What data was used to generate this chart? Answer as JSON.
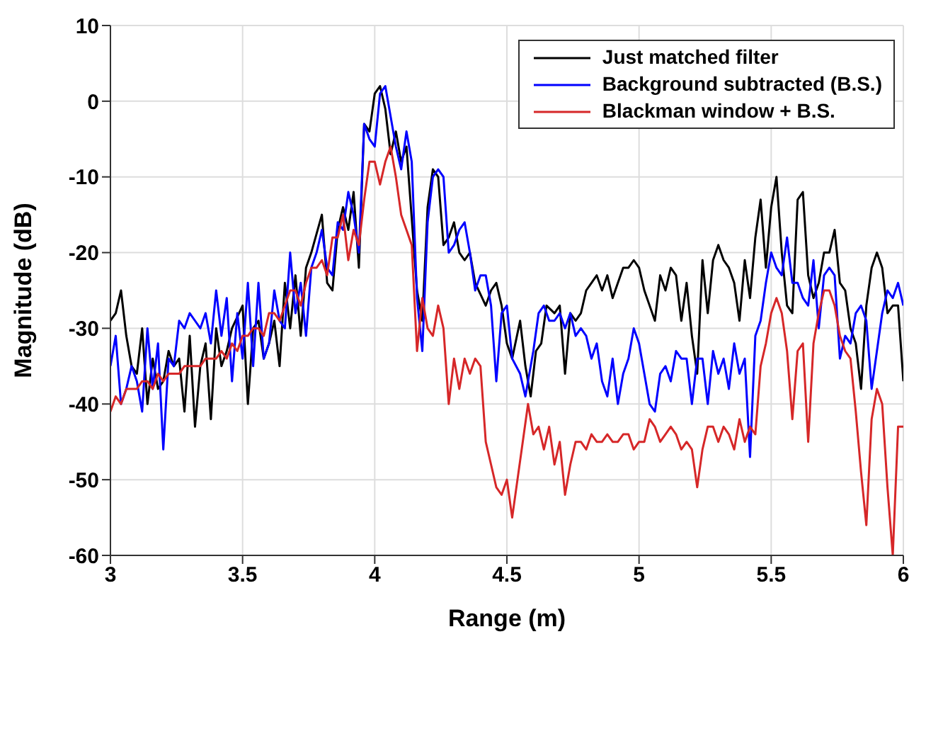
{
  "chart_data": {
    "type": "line",
    "xlabel": "Range (m)",
    "ylabel": "Magnitude (dB)",
    "xlim": [
      3,
      6
    ],
    "xticks": [
      3,
      3.5,
      4,
      4.5,
      5,
      5.5,
      6
    ],
    "ylim": [
      -60,
      10
    ],
    "yticks": [
      -60,
      -50,
      -40,
      -30,
      -20,
      -10,
      0,
      10
    ],
    "grid": true,
    "legend": "top right",
    "marker": "none",
    "line_style": "solid",
    "series": [
      {
        "name": "Just matched filter",
        "color": "#000000",
        "x": [
          3.0,
          3.02,
          3.04,
          3.06,
          3.08,
          3.1,
          3.12,
          3.14,
          3.16,
          3.18,
          3.2,
          3.22,
          3.24,
          3.26,
          3.28,
          3.3,
          3.32,
          3.34,
          3.36,
          3.38,
          3.4,
          3.42,
          3.44,
          3.46,
          3.5,
          3.52,
          3.54,
          3.56,
          3.58,
          3.6,
          3.62,
          3.64,
          3.66,
          3.68,
          3.7,
          3.72,
          3.74,
          3.76,
          3.8,
          3.82,
          3.84,
          3.86,
          3.88,
          3.9,
          3.92,
          3.94,
          3.96,
          3.98,
          4.0,
          4.02,
          4.04,
          4.06,
          4.08,
          4.1,
          4.12,
          4.16,
          4.18,
          4.2,
          4.22,
          4.24,
          4.26,
          4.28,
          4.3,
          4.32,
          4.34,
          4.36,
          4.38,
          4.42,
          4.44,
          4.46,
          4.48,
          4.5,
          4.52,
          4.55,
          4.57,
          4.59,
          4.61,
          4.63,
          4.65,
          4.68,
          4.7,
          4.72,
          4.74,
          4.76,
          4.78,
          4.8,
          4.82,
          4.84,
          4.86,
          4.88,
          4.9,
          4.92,
          4.94,
          4.96,
          4.98,
          5.0,
          5.02,
          5.04,
          5.06,
          5.08,
          5.1,
          5.12,
          5.14,
          5.16,
          5.18,
          5.2,
          5.22,
          5.24,
          5.26,
          5.28,
          5.3,
          5.32,
          5.34,
          5.36,
          5.38,
          5.4,
          5.42,
          5.44,
          5.46,
          5.48,
          5.5,
          5.52,
          5.54,
          5.56,
          5.58,
          5.6,
          5.62,
          5.64,
          5.66,
          5.68,
          5.7,
          5.72,
          5.74,
          5.76,
          5.78,
          5.8,
          5.82,
          5.84,
          5.86,
          5.88,
          5.9,
          5.92,
          5.94,
          5.96,
          5.98,
          6.0
        ],
        "values": [
          -29,
          -28,
          -25,
          -31,
          -35,
          -36,
          -30,
          -40,
          -34,
          -38,
          -37,
          -33,
          -35,
          -34,
          -41,
          -31,
          -43,
          -35,
          -32,
          -42,
          -30,
          -35,
          -33,
          -30,
          -27,
          -40,
          -30,
          -29,
          -34,
          -32,
          -29,
          -35,
          -24,
          -30,
          -23,
          -31,
          -22,
          -20,
          -15,
          -24,
          -25,
          -17,
          -14,
          -17,
          -12,
          -22,
          -3,
          -4,
          1,
          2,
          -1,
          -7,
          -4,
          -8,
          -6,
          -25,
          -29,
          -14,
          -9,
          -10,
          -19,
          -18,
          -16,
          -20,
          -21,
          -20,
          -24,
          -27,
          -25,
          -24,
          -27,
          -32,
          -34,
          -29,
          -35,
          -39,
          -33,
          -32,
          -27,
          -28,
          -27,
          -36,
          -28,
          -29,
          -28,
          -25,
          -24,
          -23,
          -25,
          -23,
          -26,
          -24,
          -22,
          -22,
          -21,
          -22,
          -25,
          -27,
          -29,
          -23,
          -25,
          -22,
          -23,
          -29,
          -24,
          -31,
          -36,
          -21,
          -28,
          -21,
          -19,
          -21,
          -22,
          -24,
          -29,
          -21,
          -26,
          -18,
          -13,
          -22,
          -14,
          -10,
          -20,
          -27,
          -28,
          -13,
          -12,
          -23,
          -26,
          -24,
          -20,
          -20,
          -17,
          -24,
          -25,
          -30,
          -32,
          -38,
          -27,
          -22,
          -20,
          -22,
          -28,
          -27,
          -27,
          -37
        ]
      },
      {
        "name": "Background subtracted (B.S.)",
        "color": "#0000ff",
        "x": [
          3.0,
          3.02,
          3.04,
          3.06,
          3.08,
          3.1,
          3.12,
          3.14,
          3.16,
          3.18,
          3.2,
          3.22,
          3.24,
          3.26,
          3.28,
          3.3,
          3.32,
          3.34,
          3.36,
          3.38,
          3.4,
          3.42,
          3.44,
          3.46,
          3.48,
          3.5,
          3.52,
          3.54,
          3.56,
          3.58,
          3.6,
          3.62,
          3.64,
          3.66,
          3.68,
          3.7,
          3.72,
          3.74,
          3.76,
          3.78,
          3.8,
          3.82,
          3.84,
          3.86,
          3.88,
          3.9,
          3.92,
          3.94,
          3.96,
          3.98,
          4.0,
          4.02,
          4.04,
          4.06,
          4.08,
          4.1,
          4.12,
          4.14,
          4.16,
          4.18,
          4.2,
          4.22,
          4.24,
          4.26,
          4.28,
          4.3,
          4.32,
          4.34,
          4.36,
          4.38,
          4.4,
          4.42,
          4.44,
          4.46,
          4.48,
          4.5,
          4.52,
          4.55,
          4.57,
          4.6,
          4.62,
          4.64,
          4.66,
          4.68,
          4.7,
          4.72,
          4.74,
          4.76,
          4.78,
          4.8,
          4.82,
          4.84,
          4.86,
          4.88,
          4.9,
          4.92,
          4.94,
          4.96,
          4.98,
          5.0,
          5.02,
          5.04,
          5.06,
          5.08,
          5.1,
          5.12,
          5.14,
          5.16,
          5.18,
          5.2,
          5.22,
          5.24,
          5.26,
          5.28,
          5.3,
          5.32,
          5.34,
          5.36,
          5.38,
          5.4,
          5.42,
          5.44,
          5.46,
          5.48,
          5.5,
          5.52,
          5.54,
          5.56,
          5.58,
          5.6,
          5.62,
          5.64,
          5.66,
          5.68,
          5.7,
          5.72,
          5.74,
          5.76,
          5.78,
          5.8,
          5.82,
          5.84,
          5.86,
          5.88,
          5.9,
          5.92,
          5.94,
          5.96,
          5.98,
          6.0
        ],
        "values": [
          -35,
          -31,
          -40,
          -38,
          -35,
          -37,
          -41,
          -30,
          -38,
          -32,
          -46,
          -34,
          -35,
          -29,
          -30,
          -28,
          -29,
          -30,
          -28,
          -32,
          -25,
          -31,
          -26,
          -37,
          -28,
          -34,
          -24,
          -35,
          -24,
          -34,
          -32,
          -25,
          -29,
          -30,
          -20,
          -28,
          -24,
          -31,
          -22,
          -20,
          -17,
          -22,
          -23,
          -16,
          -17,
          -12,
          -15,
          -20,
          -3,
          -5,
          -6,
          1,
          2,
          -2,
          -6,
          -9,
          -4,
          -8,
          -26,
          -33,
          -16,
          -10,
          -9,
          -10,
          -20,
          -19,
          -17,
          -16,
          -20,
          -25,
          -23,
          -23,
          -27,
          -37,
          -28,
          -27,
          -34,
          -36,
          -39,
          -33,
          -28,
          -27,
          -29,
          -29,
          -28,
          -30,
          -28,
          -31,
          -30,
          -31,
          -34,
          -32,
          -37,
          -39,
          -34,
          -40,
          -36,
          -34,
          -30,
          -32,
          -36,
          -40,
          -41,
          -36,
          -35,
          -37,
          -33,
          -34,
          -34,
          -40,
          -34,
          -34,
          -40,
          -33,
          -36,
          -34,
          -38,
          -32,
          -36,
          -34,
          -47,
          -31,
          -29,
          -24,
          -20,
          -22,
          -23,
          -18,
          -24,
          -24,
          -26,
          -27,
          -21,
          -30,
          -23,
          -22,
          -23,
          -34,
          -31,
          -32,
          -28,
          -27,
          -29,
          -38,
          -33,
          -28,
          -25,
          -26,
          -24,
          -27
        ]
      },
      {
        "name": "Blackman window + B.S.",
        "color": "#d62728",
        "x": [
          3.0,
          3.02,
          3.04,
          3.06,
          3.08,
          3.1,
          3.12,
          3.14,
          3.16,
          3.18,
          3.2,
          3.22,
          3.24,
          3.26,
          3.28,
          3.3,
          3.32,
          3.34,
          3.36,
          3.38,
          3.4,
          3.42,
          3.44,
          3.46,
          3.48,
          3.5,
          3.52,
          3.54,
          3.56,
          3.58,
          3.6,
          3.62,
          3.64,
          3.66,
          3.68,
          3.7,
          3.72,
          3.74,
          3.76,
          3.78,
          3.8,
          3.82,
          3.84,
          3.86,
          3.88,
          3.9,
          3.92,
          3.94,
          3.96,
          3.98,
          4.0,
          4.02,
          4.04,
          4.06,
          4.08,
          4.1,
          4.12,
          4.14,
          4.16,
          4.18,
          4.2,
          4.22,
          4.24,
          4.26,
          4.28,
          4.3,
          4.32,
          4.34,
          4.36,
          4.38,
          4.4,
          4.42,
          4.44,
          4.46,
          4.48,
          4.5,
          4.52,
          4.54,
          4.56,
          4.58,
          4.6,
          4.62,
          4.64,
          4.66,
          4.68,
          4.7,
          4.72,
          4.74,
          4.76,
          4.78,
          4.8,
          4.82,
          4.84,
          4.86,
          4.88,
          4.9,
          4.92,
          4.94,
          4.96,
          4.98,
          5.0,
          5.02,
          5.04,
          5.06,
          5.08,
          5.1,
          5.12,
          5.14,
          5.16,
          5.18,
          5.2,
          5.22,
          5.24,
          5.26,
          5.28,
          5.3,
          5.32,
          5.34,
          5.36,
          5.38,
          5.4,
          5.42,
          5.44,
          5.46,
          5.48,
          5.5,
          5.52,
          5.54,
          5.56,
          5.58,
          5.6,
          5.62,
          5.64,
          5.66,
          5.68,
          5.7,
          5.72,
          5.74,
          5.76,
          5.78,
          5.8,
          5.82,
          5.84,
          5.86,
          5.88,
          5.9,
          5.92,
          5.94,
          5.96,
          5.98,
          6.0
        ],
        "values": [
          -41,
          -39,
          -40,
          -38,
          -38,
          -38,
          -37,
          -37,
          -38,
          -36,
          -37,
          -36,
          -36,
          -36,
          -35,
          -35,
          -35,
          -35,
          -34,
          -34,
          -34,
          -33,
          -34,
          -32,
          -33,
          -31,
          -31,
          -30,
          -30,
          -31,
          -28,
          -28,
          -29,
          -27,
          -25,
          -25,
          -27,
          -24,
          -22,
          -22,
          -21,
          -23,
          -18,
          -18,
          -15,
          -21,
          -17,
          -19,
          -13,
          -8,
          -8,
          -11,
          -8,
          -6,
          -10,
          -15,
          -17,
          -19,
          -33,
          -26,
          -30,
          -31,
          -27,
          -30,
          -40,
          -34,
          -38,
          -34,
          -36,
          -34,
          -35,
          -45,
          -48,
          -51,
          -52,
          -50,
          -55,
          -50,
          -45,
          -40,
          -44,
          -43,
          -46,
          -43,
          -48,
          -45,
          -52,
          -48,
          -45,
          -45,
          -46,
          -44,
          -45,
          -45,
          -44,
          -45,
          -45,
          -44,
          -44,
          -46,
          -45,
          -45,
          -42,
          -43,
          -45,
          -44,
          -43,
          -44,
          -46,
          -45,
          -46,
          -51,
          -46,
          -43,
          -43,
          -45,
          -43,
          -44,
          -46,
          -42,
          -45,
          -43,
          -44,
          -35,
          -32,
          -28,
          -26,
          -28,
          -33,
          -42,
          -33,
          -32,
          -45,
          -32,
          -28,
          -25,
          -25,
          -27,
          -31,
          -33,
          -34,
          -41,
          -49,
          -56,
          -42,
          -38,
          -40,
          -51,
          -60,
          -43,
          -43
        ]
      }
    ]
  }
}
